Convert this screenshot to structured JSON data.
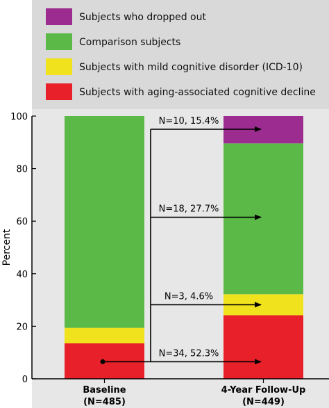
{
  "chart_data": {
    "type": "bar",
    "stacked": true,
    "categories": [
      {
        "name": "Baseline",
        "sub": "(N=485)"
      },
      {
        "name": "4-Year Follow-Up",
        "sub": "(N=449)"
      }
    ],
    "series": [
      {
        "name": "Subjects with aging-associated cognitive decline",
        "color": "#e8202a",
        "values": [
          13.5,
          24.2
        ]
      },
      {
        "name": "Subjects with mild cognitive disorder (ICD-10)",
        "color": "#f0e21c",
        "values": [
          5.9,
          8.0
        ]
      },
      {
        "name": "Comparison subjects",
        "color": "#5bb947",
        "values": [
          80.6,
          57.4
        ]
      },
      {
        "name": "Subjects who dropped out",
        "color": "#9c2c8f",
        "values": [
          0,
          10.4
        ]
      }
    ],
    "legend_order": [
      3,
      2,
      1,
      0
    ],
    "ylabel": "Percent",
    "ylim": [
      0,
      100
    ],
    "yticks": [
      0,
      20,
      40,
      60,
      80,
      100
    ],
    "grid": false,
    "legend_position": "top",
    "annotations": [
      {
        "label": "N=10, 15.4%",
        "target_y": 95
      },
      {
        "label": "N=18, 27.7%",
        "target_y": 61.5
      },
      {
        "label": "N=3, 4.6%",
        "target_y": 28.2
      },
      {
        "label": "N=34, 52.3%",
        "target_y": 6.5
      }
    ],
    "flow_origin_y": 6.5
  }
}
